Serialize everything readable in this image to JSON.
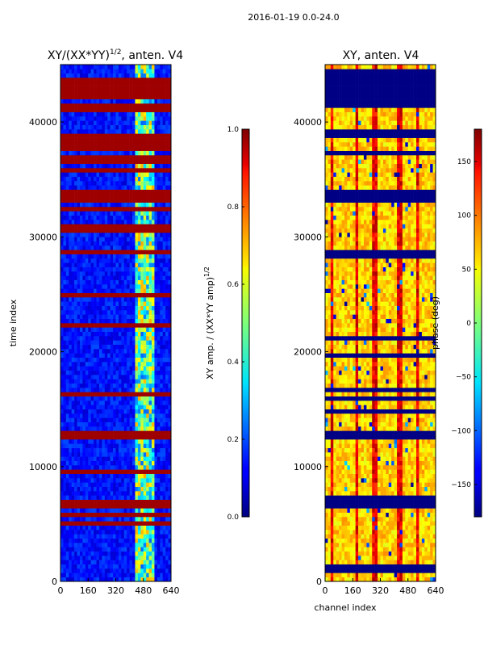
{
  "chart_data": [
    {
      "type": "heatmap",
      "suptitle": "2016-01-19 0.0-24.0",
      "title": "XY/(XX*YY)",
      "title_superscript": "1/2",
      "title_suffix": ", anten. V4",
      "xlabel": "",
      "ylabel": "time index",
      "xticks": [
        0,
        160,
        320,
        480,
        640
      ],
      "yticks": [
        0,
        10000,
        20000,
        30000,
        40000
      ],
      "xlim": [
        0,
        640
      ],
      "ylim": [
        0,
        45000
      ],
      "colorbar": {
        "label": "XY amp. / (XX*YY amp)",
        "label_superscript": "1/2",
        "ticks": [
          0.0,
          0.2,
          0.4,
          0.6,
          0.8,
          1.0
        ],
        "tick_labels": [
          "0.0",
          "0.2",
          "0.4",
          "0.6",
          "0.8",
          "1.0"
        ],
        "range": [
          0.0,
          1.0
        ],
        "colormap": "jet"
      },
      "flagged_time_bands": [
        [
          4900,
          5400
        ],
        [
          6300,
          7000
        ],
        [
          12400,
          13000
        ],
        [
          32100,
          32600
        ],
        [
          33000,
          34000
        ],
        [
          35600,
          36000
        ],
        [
          36200,
          37000
        ],
        [
          37800,
          39000
        ],
        [
          41000,
          41500
        ],
        [
          41900,
          44000
        ]
      ],
      "bright_channel_band": [
        440,
        540
      ],
      "bright_channel_value": 0.55,
      "background_value": 0.08,
      "colormap": "jet"
    },
    {
      "type": "heatmap",
      "title": "XY, anten. V4",
      "xlabel": "channel index",
      "ylabel": "",
      "xticks": [
        0,
        160,
        320,
        480,
        640
      ],
      "yticks": [
        0,
        10000,
        20000,
        30000,
        40000
      ],
      "xlim": [
        0,
        640
      ],
      "ylim": [
        0,
        45000
      ],
      "colorbar": {
        "label": "phase (deg)",
        "ticks": [
          -150,
          -100,
          -50,
          0,
          50,
          100,
          150
        ],
        "tick_labels": [
          "−150",
          "−100",
          "−50",
          "0",
          "50",
          "100",
          "150"
        ],
        "range": [
          -180,
          180
        ],
        "colormap": "jet"
      },
      "flagged_time_bands": [
        [
          6300,
          7000
        ],
        [
          12400,
          13000
        ],
        [
          33000,
          34000
        ],
        [
          38700,
          39500
        ],
        [
          41300,
          44500
        ]
      ],
      "dominant_phase_deg": 60,
      "vertical_stripe_channels": [
        40,
        180,
        290,
        430,
        540
      ],
      "colormap": "jet"
    }
  ]
}
